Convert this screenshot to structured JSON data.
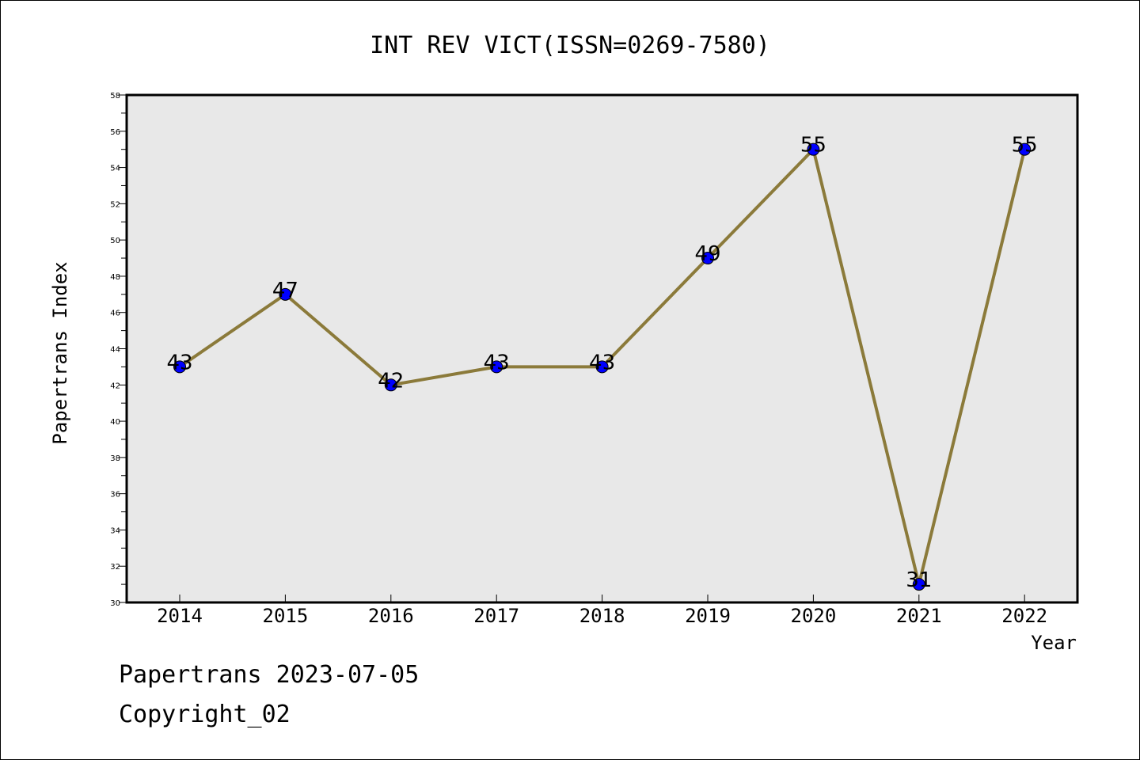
{
  "chart_data": {
    "type": "line",
    "title": "INT REV VICT(ISSN=0269-7580)",
    "xlabel": "Year",
    "ylabel": "Papertrans Index",
    "categories": [
      "2014",
      "2015",
      "2016",
      "2017",
      "2018",
      "2019",
      "2020",
      "2021",
      "2022"
    ],
    "series": [
      {
        "values": [
          43,
          47,
          42,
          43,
          43,
          49,
          55,
          31,
          55
        ]
      }
    ],
    "data_labels": [
      "43",
      "47",
      "42",
      "43",
      "43",
      "49",
      "55",
      "31",
      "55"
    ],
    "ylim": [
      30,
      58
    ],
    "y_ticks": [
      "30",
      "32",
      "34",
      "36",
      "38",
      "40",
      "42",
      "44",
      "46",
      "48",
      "50",
      "52",
      "54",
      "56",
      "58"
    ],
    "grid": false,
    "legend": "none",
    "colors": {
      "line": "#8b7a3a",
      "marker": "#0000ff",
      "plot_background": "#e8e8e8"
    }
  },
  "footer": {
    "line1": "Papertrans 2023-07-05",
    "line2": "Copyright_02"
  }
}
